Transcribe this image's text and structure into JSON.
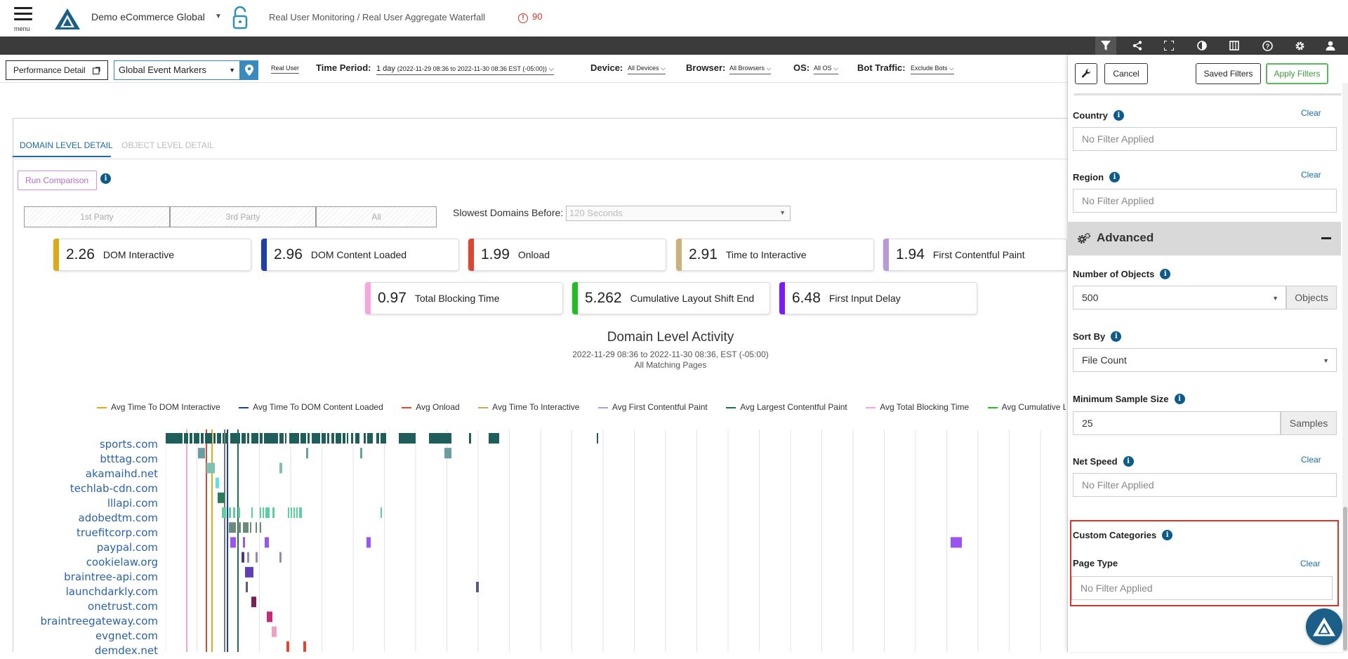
{
  "header": {
    "menu_label": "menu",
    "app_name": "Demo eCommerce Global",
    "breadcrumb": "Real User Monitoring / Real User Aggregate Waterfall",
    "alert_count": "90"
  },
  "toolbar_icons": [
    "filter-icon",
    "share-icon",
    "fullscreen-icon",
    "contrast-icon",
    "columns-icon",
    "help-icon",
    "gear-icon",
    "user-icon"
  ],
  "filters": {
    "perf_button": "Performance Detail",
    "event_markers": "Global Event Markers",
    "real_user": "Real User",
    "time_period_label": "Time Period:",
    "time_period_value": "1 day",
    "time_period_range": "(2022-11-29 08:36 to 2022-11-30 08:36 EST (-05:00))",
    "device_label": "Device:",
    "device_value": "All Devices",
    "browser_label": "Browser:",
    "browser_value": "All Browsers",
    "os_label": "OS:",
    "os_value": "All OS",
    "bot_label": "Bot Traffic:",
    "bot_value": "Exclude Bots"
  },
  "tabs": {
    "domain": "DOMAIN LEVEL DETAIL",
    "object": "OBJECT LEVEL DETAIL"
  },
  "run_comparison": "Run Comparison",
  "party": {
    "first": "1st Party",
    "third": "3rd Party",
    "all": "All"
  },
  "slowest": {
    "label": "Slowest Domains Before:",
    "value": "120 Seconds"
  },
  "metrics": [
    {
      "value": "2.26",
      "label": "DOM Interactive",
      "color": "#d8ab1a"
    },
    {
      "value": "2.96",
      "label": "DOM Content Loaded",
      "color": "#1d3fa6"
    },
    {
      "value": "1.99",
      "label": "Onload",
      "color": "#e0452f"
    },
    {
      "value": "2.91",
      "label": "Time to Interactive",
      "color": "#c9b37a"
    },
    {
      "value": "1.94",
      "label": "First Contentful Paint",
      "color": "#b79ad6"
    },
    {
      "value": "0.97",
      "label": "Total Blocking Time",
      "color": "#f6a6d9"
    },
    {
      "value": "5.262",
      "label": "Cumulative Layout Shift End",
      "color": "#1fbf1f"
    },
    {
      "value": "6.48",
      "label": "First Input Delay",
      "color": "#7a1df0"
    }
  ],
  "chart": {
    "title": "Domain Level Activity",
    "subtitle": "2022-11-29 08:36 to 2022-11-30 08:36, EST (-05:00)",
    "subtitle2": "All Matching Pages",
    "legend": [
      {
        "label": "Avg Time To DOM Interactive",
        "color": "#e6a817"
      },
      {
        "label": "Avg Time To DOM Content Loaded",
        "color": "#1d3fa6"
      },
      {
        "label": "Avg Onload",
        "color": "#e0452f"
      },
      {
        "label": "Avg Time To Interactive",
        "color": "#c9a95a"
      },
      {
        "label": "Avg First Contentful Paint",
        "color": "#b79ad6"
      },
      {
        "label": "Avg Largest Contentful Paint",
        "color": "#1f6b5a"
      },
      {
        "label": "Avg Total Blocking Time",
        "color": "#f6a6d9"
      },
      {
        "label": "Avg Cumulative Layo",
        "color": "#1fbf1f"
      }
    ],
    "domains": [
      "sports.com",
      "btttag.com",
      "akamaihd.net",
      "techlab-cdn.com",
      "lllapi.com",
      "adobedtm.com",
      "truefitcorp.com",
      "paypal.com",
      "cookielaw.org",
      "braintree-api.com",
      "launchdarkly.com",
      "onetrust.com",
      "braintreegateway.com",
      "evgnet.com",
      "demdex.net"
    ]
  },
  "drawer": {
    "cancel": "Cancel",
    "saved_filters": "Saved Filters",
    "apply_filters": "Apply Filters",
    "clear": "Clear",
    "country_label": "Country",
    "country_value": "No Filter Applied",
    "region_label": "Region",
    "region_value": "No Filter Applied",
    "advanced": "Advanced",
    "num_objects_label": "Number of Objects",
    "num_objects_value": "500",
    "num_objects_unit": "Objects",
    "sort_by_label": "Sort By",
    "sort_by_value": "File Count",
    "min_sample_label": "Minimum Sample Size",
    "min_sample_value": "25",
    "min_sample_unit": "Samples",
    "net_speed_label": "Net Speed",
    "net_speed_value": "No Filter Applied",
    "custom_categories_label": "Custom Categories",
    "page_type_label": "Page Type",
    "page_type_value": "No Filter Applied"
  }
}
